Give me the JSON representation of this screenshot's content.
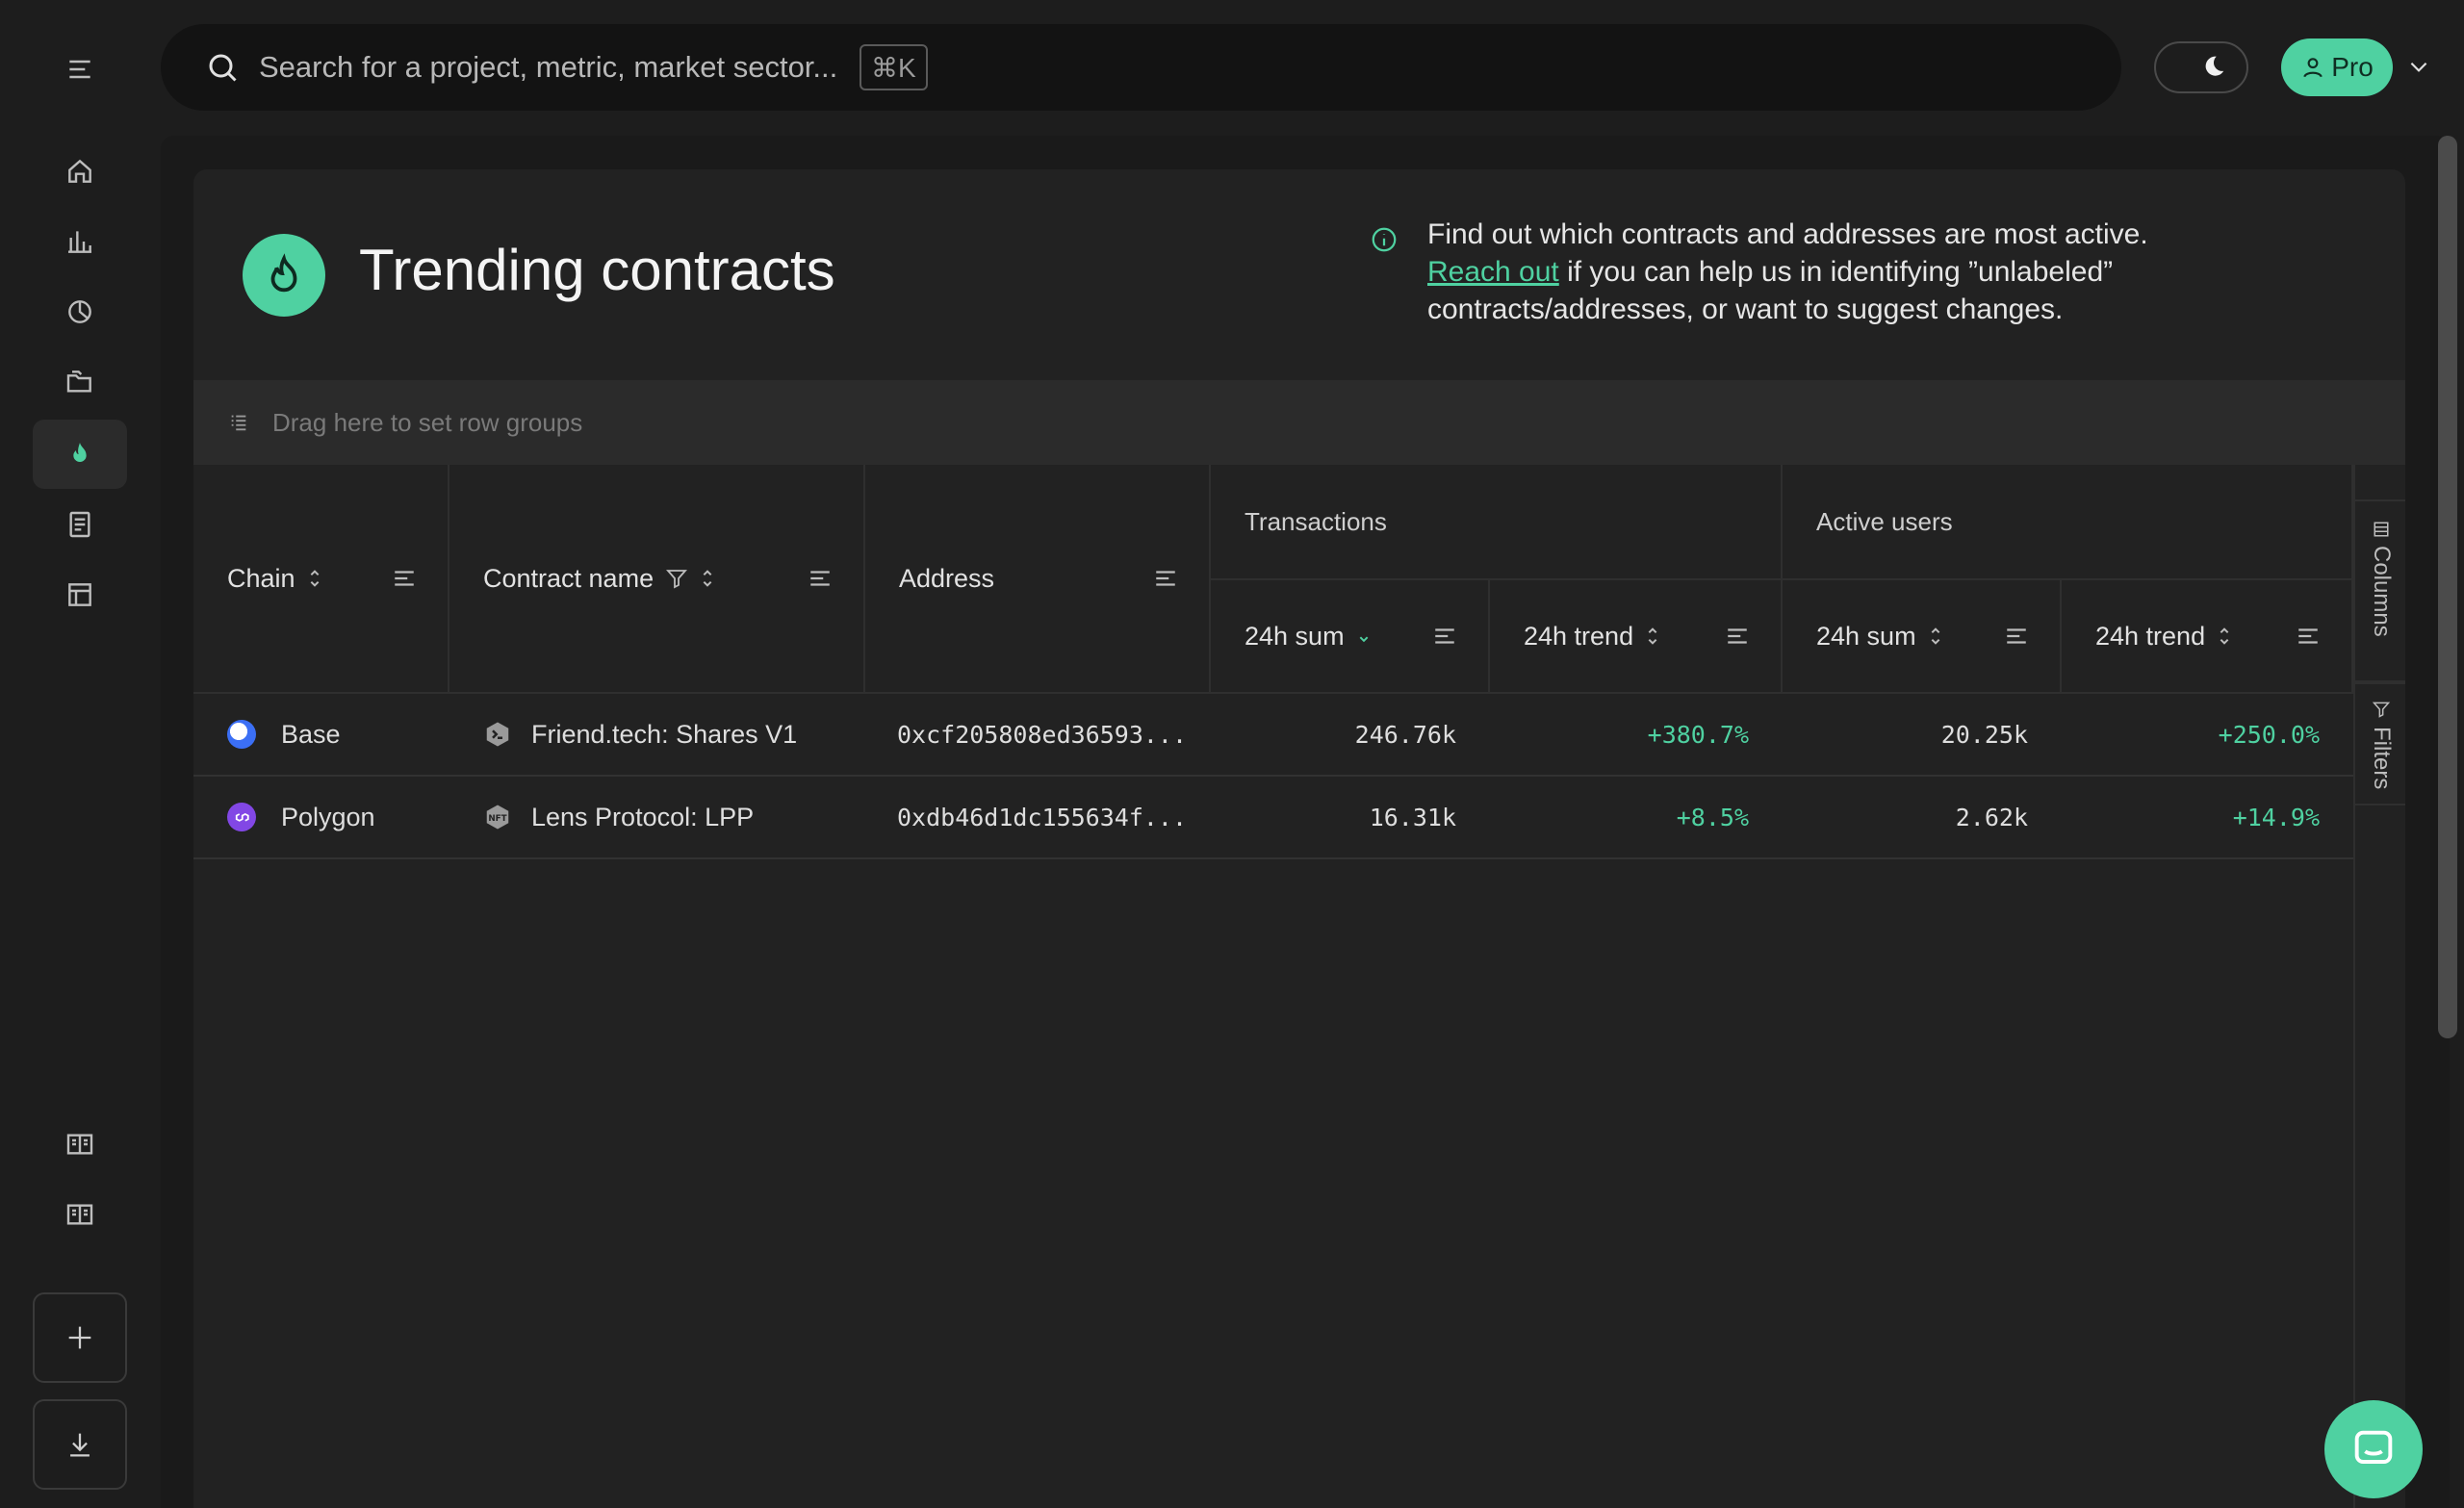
{
  "search": {
    "placeholder": "Search for a project, metric, market sector...",
    "shortcut": "⌘K"
  },
  "header": {
    "pro_label": "Pro"
  },
  "sidebar": {
    "items": [
      "menu-icon",
      "home-icon",
      "bar-chart-icon",
      "pie-chart-icon",
      "folders-icon",
      "flame-icon",
      "document-icon",
      "table-icon",
      "book-icon",
      "book-icon"
    ],
    "active": "flame-icon"
  },
  "page": {
    "title": "Trending contracts",
    "info_line1": "Find out which contracts and addresses are most active.",
    "info_link": "Reach out",
    "info_line2": " if you can help us in identifying ”unlabeled” contracts/addresses, or want to suggest changes.",
    "rowgroup_hint": "Drag here to set row groups"
  },
  "table": {
    "headers": {
      "chain": "Chain",
      "contract": "Contract name",
      "address": "Address",
      "transactions": "Transactions",
      "active_users": "Active users",
      "tx_sum": "24h sum",
      "tx_trend": "24h trend",
      "au_sum": "24h sum",
      "au_trend": "24h trend"
    },
    "rows": [
      {
        "chain": "Base",
        "chain_color": "#3b6ff5",
        "contract": "Friend.tech: Shares V1",
        "address": "0xcf205808ed36593...",
        "tx_sum": "246.76k",
        "tx_trend": "+380.7%",
        "au_sum": "20.25k",
        "au_trend": "+250.0%"
      },
      {
        "chain": "Polygon",
        "chain_color": "#8247e5",
        "contract": "Lens Protocol: LPP",
        "address": "0xdb46d1dc155634f...",
        "tx_sum": "16.31k",
        "tx_trend": "+8.5%",
        "au_sum": "2.62k",
        "au_trend": "+14.9%"
      }
    ]
  },
  "side_panel": {
    "columns": "Columns",
    "filters": "Filters"
  },
  "colors": {
    "accent": "#4fd1a1",
    "background": "#1d1d1d",
    "card": "#222222"
  }
}
